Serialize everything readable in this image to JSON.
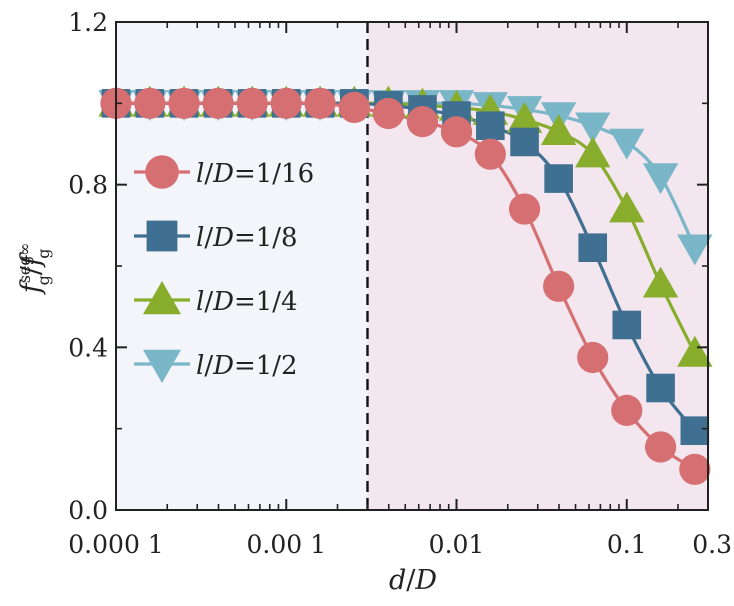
{
  "chart_data": {
    "type": "line",
    "title": "",
    "xlabel": "d/D",
    "ylabel": "f_g^seg / f_g^∞",
    "xscale": "log",
    "xlim": [
      0.0001,
      0.3
    ],
    "ylim": [
      0.0,
      1.2
    ],
    "x_ticks": [
      {
        "value": 0.0001,
        "label": "0.000 1"
      },
      {
        "value": 0.001,
        "label": "0.00 1"
      },
      {
        "value": 0.01,
        "label": "0.01"
      },
      {
        "value": 0.1,
        "label": "0.1"
      },
      {
        "value": 0.3,
        "label": "0.3"
      }
    ],
    "y_ticks": [
      {
        "value": 0.0,
        "label": "0.0"
      },
      {
        "value": 0.4,
        "label": "0.4"
      },
      {
        "value": 0.8,
        "label": "0.8"
      },
      {
        "value": 1.2,
        "label": "1.2"
      }
    ],
    "vline": {
      "x": 0.003,
      "style": "dashed"
    },
    "regions": [
      {
        "x_from": 0.0001,
        "x_to": 0.003,
        "color": "#f3f5fb"
      },
      {
        "x_from": 0.003,
        "x_to": 0.3,
        "color": "#f3e6ee"
      }
    ],
    "grid": false,
    "legend": "left",
    "series": [
      {
        "name": "l/D=1/16",
        "legend_text": {
          "l": "l",
          "slash": "/",
          "D": "D",
          "rest": "=1/16"
        },
        "color": "#d66f72",
        "marker": "circle",
        "x": [
          0.0001,
          0.000158,
          0.000251,
          0.000398,
          0.000631,
          0.001,
          0.00158,
          0.00251,
          0.00398,
          0.00631,
          0.01,
          0.0158,
          0.0251,
          0.0398,
          0.0631,
          0.1,
          0.158,
          0.251
        ],
        "y": [
          1.0,
          1.0,
          1.0,
          1.0,
          1.0,
          1.0,
          1.0,
          0.99,
          0.975,
          0.955,
          0.93,
          0.875,
          0.74,
          0.55,
          0.375,
          0.245,
          0.155,
          0.1
        ]
      },
      {
        "name": "l/D=1/8",
        "legend_text": {
          "l": "l",
          "slash": "/",
          "D": "D",
          "rest": "=1/8"
        },
        "color": "#3f6f91",
        "marker": "square",
        "x": [
          0.0001,
          0.000158,
          0.000251,
          0.000398,
          0.000631,
          0.001,
          0.00158,
          0.00251,
          0.00398,
          0.00631,
          0.01,
          0.0158,
          0.0251,
          0.0398,
          0.0631,
          0.1,
          0.158,
          0.251
        ],
        "y": [
          1.0,
          1.0,
          1.0,
          1.0,
          1.0,
          1.0,
          1.0,
          1.0,
          0.995,
          0.985,
          0.97,
          0.945,
          0.905,
          0.815,
          0.645,
          0.455,
          0.3,
          0.195
        ]
      },
      {
        "name": "l/D=1/4",
        "legend_text": {
          "l": "l",
          "slash": "/",
          "D": "D",
          "rest": "=1/4"
        },
        "color": "#88ad2c",
        "marker": "triangle-up",
        "x": [
          0.0001,
          0.000158,
          0.000251,
          0.000398,
          0.000631,
          0.001,
          0.00158,
          0.00251,
          0.00398,
          0.00631,
          0.01,
          0.0158,
          0.0251,
          0.0398,
          0.0631,
          0.1,
          0.158,
          0.251
        ],
        "y": [
          1.0,
          1.0,
          1.0,
          1.0,
          1.0,
          1.0,
          1.0,
          1.0,
          1.0,
          0.995,
          0.99,
          0.98,
          0.96,
          0.93,
          0.875,
          0.74,
          0.555,
          0.385
        ]
      },
      {
        "name": "l/D=1/2",
        "legend_text": {
          "l": "l",
          "slash": "/",
          "D": "D",
          "rest": "=1/2"
        },
        "color": "#79b6c8",
        "marker": "triangle-down",
        "x": [
          0.0001,
          0.000158,
          0.000251,
          0.000398,
          0.000631,
          0.001,
          0.00158,
          0.00251,
          0.00398,
          0.00631,
          0.01,
          0.0158,
          0.0251,
          0.0398,
          0.0631,
          0.1,
          0.158,
          0.251
        ],
        "y": [
          1.0,
          1.0,
          1.0,
          1.0,
          1.0,
          1.0,
          1.0,
          1.0,
          1.0,
          1.0,
          1.0,
          0.995,
          0.985,
          0.97,
          0.945,
          0.905,
          0.82,
          0.645
        ]
      }
    ]
  }
}
